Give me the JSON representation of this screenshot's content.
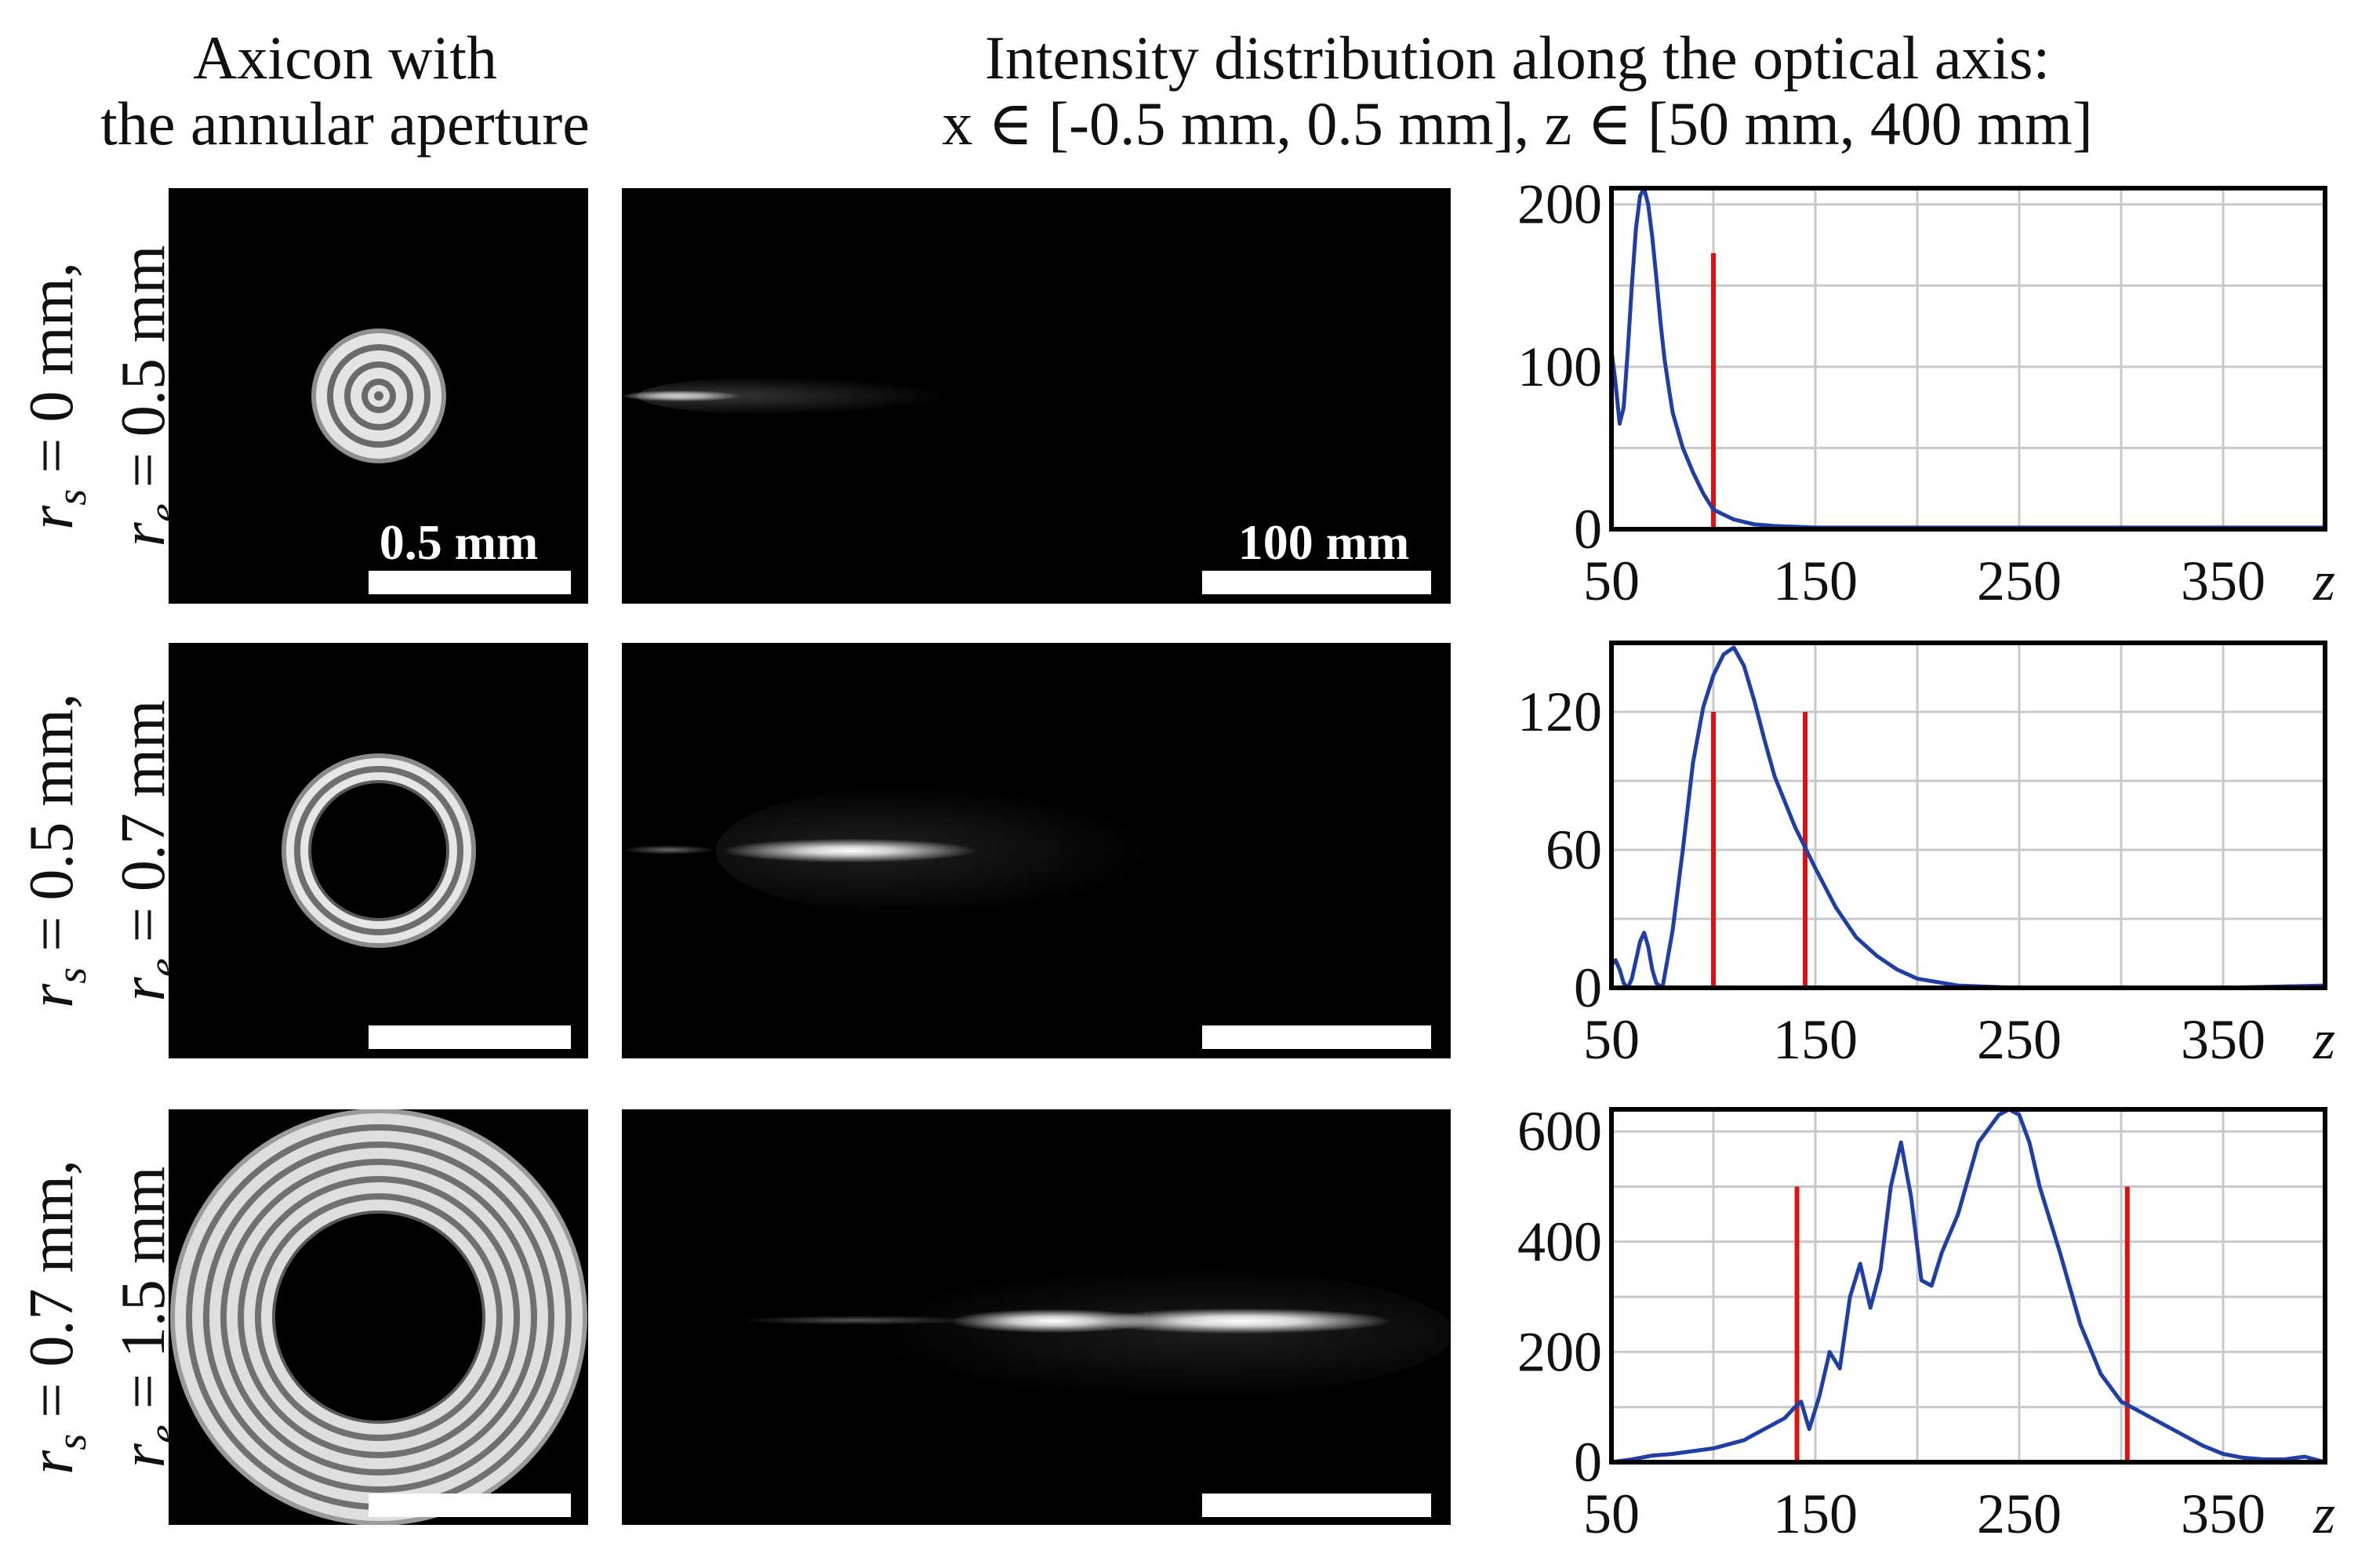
{
  "header": {
    "left_line1": "Axicon with",
    "left_line2": "the annular aperture",
    "right_line1": "Intensity distribution along the optical axis:",
    "right_line2": "x ∈ [-0.5 mm, 0.5 mm], z ∈ [50 mm, 400 mm]"
  },
  "rows": [
    {
      "rs_text": " = 0 mm,",
      "re_text": " = 0.5 mm"
    },
    {
      "rs_text": " = 0.5 mm,",
      "re_text": " = 0.7 mm"
    },
    {
      "rs_text": " = 0.7 mm,",
      "re_text": " = 1.5 mm"
    }
  ],
  "scale_bars": {
    "aperture": "0.5 mm",
    "intensity": "100 mm"
  },
  "colors": {
    "curve": "#1f3fa6",
    "marker": "#e01010",
    "grid": "#c8c8c8"
  },
  "chart_data": [
    {
      "type": "line",
      "title": "",
      "xlabel": "z",
      "ylabel": "",
      "xlim": [
        50,
        400
      ],
      "ylim": [
        0,
        210
      ],
      "xticks": [
        50,
        150,
        250,
        350
      ],
      "yticks": [
        0,
        100,
        200
      ],
      "x": [
        50,
        52,
        54,
        56,
        58,
        60,
        62,
        64,
        66,
        68,
        70,
        72,
        74,
        76,
        78,
        80,
        85,
        90,
        95,
        100,
        110,
        120,
        130,
        150,
        200,
        250,
        300,
        350,
        400
      ],
      "series": [
        {
          "name": "intensity",
          "values": [
            110,
            90,
            65,
            75,
            110,
            150,
            185,
            205,
            210,
            200,
            180,
            155,
            128,
            105,
            88,
            72,
            50,
            35,
            22,
            12,
            6,
            3,
            2,
            1,
            1,
            1,
            1,
            1,
            1
          ]
        }
      ],
      "markers": [
        {
          "x": 100,
          "ymax": 170
        }
      ]
    },
    {
      "type": "line",
      "title": "",
      "xlabel": "z",
      "ylabel": "",
      "xlim": [
        50,
        400
      ],
      "ylim": [
        0,
        150
      ],
      "xticks": [
        50,
        150,
        250,
        350
      ],
      "yticks": [
        0,
        60,
        120
      ],
      "x": [
        50,
        52,
        54,
        56,
        58,
        60,
        62,
        64,
        66,
        68,
        70,
        72,
        75,
        80,
        85,
        90,
        95,
        100,
        105,
        110,
        115,
        120,
        125,
        130,
        140,
        150,
        160,
        170,
        180,
        190,
        200,
        220,
        250,
        300,
        350,
        400
      ],
      "series": [
        {
          "name": "intensity",
          "values": [
            10,
            12,
            8,
            2,
            0,
            4,
            12,
            20,
            24,
            18,
            8,
            2,
            0,
            25,
            60,
            98,
            122,
            136,
            145,
            148,
            140,
            125,
            108,
            92,
            70,
            52,
            35,
            22,
            14,
            8,
            4,
            1,
            0,
            0,
            0,
            1
          ]
        }
      ],
      "markers": [
        {
          "x": 100,
          "ymax": 120
        },
        {
          "x": 145,
          "ymax": 120
        }
      ]
    },
    {
      "type": "line",
      "title": "",
      "xlabel": "z",
      "ylabel": "",
      "xlim": [
        50,
        400
      ],
      "ylim": [
        0,
        640
      ],
      "xticks": [
        50,
        150,
        250,
        350
      ],
      "yticks": [
        0,
        200,
        400,
        600
      ],
      "x": [
        50,
        60,
        70,
        80,
        90,
        100,
        105,
        110,
        115,
        120,
        125,
        130,
        135,
        140,
        143,
        147,
        152,
        157,
        162,
        167,
        172,
        177,
        182,
        187,
        192,
        197,
        202,
        207,
        212,
        220,
        230,
        240,
        245,
        250,
        255,
        260,
        270,
        280,
        290,
        300,
        310,
        320,
        330,
        340,
        350,
        360,
        370,
        380,
        390,
        400
      ],
      "series": [
        {
          "name": "intensity",
          "values": [
            0,
            5,
            12,
            15,
            20,
            25,
            30,
            35,
            40,
            50,
            60,
            70,
            80,
            100,
            110,
            60,
            120,
            200,
            170,
            300,
            360,
            280,
            350,
            500,
            580,
            480,
            330,
            320,
            380,
            450,
            580,
            630,
            640,
            630,
            580,
            500,
            380,
            250,
            160,
            110,
            90,
            70,
            50,
            30,
            15,
            8,
            5,
            5,
            10,
            0
          ]
        }
      ],
      "markers": [
        {
          "x": 141,
          "ymax": 500
        },
        {
          "x": 303,
          "ymax": 500
        }
      ]
    }
  ]
}
